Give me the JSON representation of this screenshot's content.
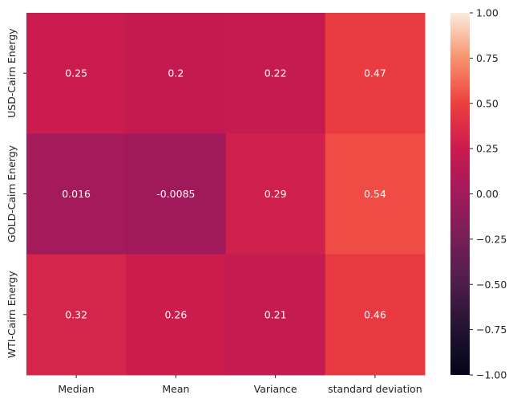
{
  "chart_data": {
    "type": "heatmap",
    "title": "",
    "xlabel": "",
    "ylabel": "",
    "columns": [
      "Median",
      "Mean",
      "Variance",
      "standard deviation"
    ],
    "rows": [
      "USD-Cairn Energy",
      "GOLD-Cairn Energy",
      "WTI-Cairn Energy"
    ],
    "values": [
      [
        0.25,
        0.2,
        0.22,
        0.47
      ],
      [
        0.016,
        -0.0085,
        0.29,
        0.54
      ],
      [
        0.32,
        0.26,
        0.21,
        0.46
      ]
    ],
    "annotations": [
      [
        "0.25",
        "0.2",
        "0.22",
        "0.47"
      ],
      [
        "0.016",
        "-0.0085",
        "0.29",
        "0.54"
      ],
      [
        "0.32",
        "0.26",
        "0.21",
        "0.46"
      ]
    ],
    "colorbar": {
      "vmin": -1.0,
      "vmax": 1.0,
      "ticks": [
        1.0,
        0.75,
        0.5,
        0.25,
        0.0,
        -0.25,
        -0.5,
        -0.75,
        -1.0
      ],
      "tick_labels": [
        "1.00",
        "0.75",
        "0.50",
        "0.25",
        "0.00",
        "−0.25",
        "−0.50",
        "−0.75",
        "−1.00"
      ],
      "colormap": "rocket"
    },
    "grid": false
  }
}
